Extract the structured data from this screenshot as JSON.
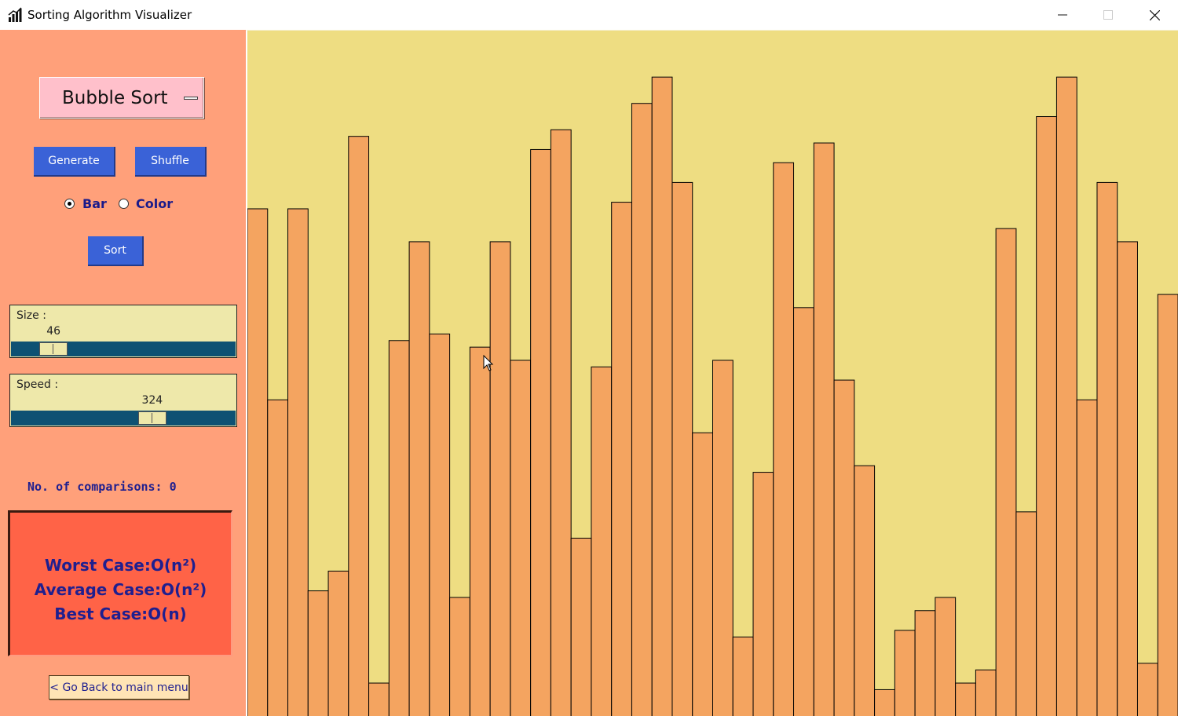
{
  "window": {
    "title": "Sorting Algorithm Visualizer",
    "icon": "bar-chart-icon",
    "controls": [
      "minimize-icon",
      "maximize-icon",
      "close-icon"
    ]
  },
  "sidebar": {
    "algorithm": "Bubble Sort",
    "buttons": {
      "generate": "Generate",
      "shuffle": "Shuffle",
      "sort": "Sort"
    },
    "mode": {
      "options": [
        "Bar",
        "Color"
      ],
      "selected": "Bar"
    },
    "size": {
      "label": "Size :",
      "value": "46",
      "min": 3,
      "max": 300
    },
    "speed": {
      "label": "Speed :",
      "value": "324",
      "min": 1,
      "max": 500
    },
    "comparisons": "No. of comparisons: 0",
    "complexity": {
      "worst": "Worst Case:O(n²)",
      "average": "Average Case:O(n²)",
      "best": "Best Case:O(n)"
    },
    "back_button": "< Go Back to main menu"
  },
  "colors": {
    "sidebar_bg": "#FFA07A",
    "canvas_bg": "#EEDD82",
    "bar_fill": "#F4A460",
    "button_blue": "#3A62D7",
    "complexity_bg": "#FF6347",
    "slider_trough": "#0E5173"
  },
  "bars": {
    "count": 46,
    "value_scale_max": 1,
    "values": [
      0.77,
      0.48,
      0.77,
      0.19,
      0.22,
      0.88,
      0.05,
      0.57,
      0.72,
      0.58,
      0.18,
      0.56,
      0.72,
      0.54,
      0.86,
      0.89,
      0.27,
      0.53,
      0.78,
      0.93,
      0.97,
      0.81,
      0.43,
      0.54,
      0.12,
      0.37,
      0.84,
      0.62,
      0.87,
      0.51,
      0.38,
      0.04,
      0.13,
      0.16,
      0.18,
      0.05,
      0.07,
      0.74,
      0.31,
      0.91,
      0.97,
      0.48,
      0.81,
      0.72,
      0.08,
      0.64
    ]
  }
}
